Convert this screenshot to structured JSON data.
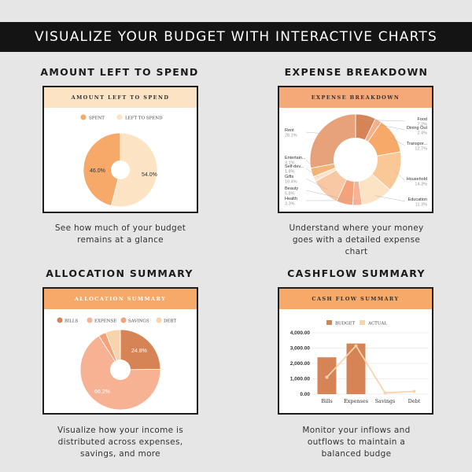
{
  "banner": {
    "title": "VISUALIZE YOUR BUDGET WITH INTERACTIVE CHARTS"
  },
  "colors": {
    "banner_bg": "#141414",
    "peach_light": "#fce3c4",
    "orange": "#f6a968",
    "salmon": "#f7b293",
    "dark_brown": "#d68456",
    "light_beige": "#f9d4ab"
  },
  "panels": {
    "amount_left": {
      "section_title": "AMOUNT LEFT TO SPEND",
      "card_title": "AMOUNT LEFT TO SPEND",
      "caption": [
        "See how much of your budget",
        "remains at a glance"
      ]
    },
    "expense_breakdown": {
      "section_title": "EXPENSE BREAKDOWN",
      "card_title": "EXPENSE BREAKDOWN",
      "caption": [
        "Understand where your money",
        "goes with a detailed expense",
        "chart"
      ]
    },
    "allocation_summary": {
      "section_title": "ALLOCATION SUMMARY",
      "card_title": "ALLOCATION SUMMARY",
      "caption": [
        "Visualize how your income is",
        "distributed across expenses,",
        "savings, and more"
      ]
    },
    "cashflow_summary": {
      "section_title": "CASHFLOW SUMMARY",
      "card_title": "CASH FLOW SUMMARY",
      "caption": [
        "Monitor your inflows and",
        "outflows to maintain a",
        "balanced budge"
      ]
    }
  },
  "chart_data": [
    {
      "type": "pie",
      "title": "AMOUNT LEFT TO SPEND",
      "legend": "top",
      "series": [
        {
          "name": "SPENT",
          "value": 46.0,
          "label": "46.0%",
          "color": "#f6a968"
        },
        {
          "name": "LEFT TO SPEND",
          "value": 54.0,
          "label": "54.0%",
          "color": "#fce3c4"
        }
      ]
    },
    {
      "type": "pie",
      "title": "EXPENSE BREAKDOWN",
      "legend": "none",
      "series": [
        {
          "name": "Food",
          "value": 7.2,
          "label": "7.2%",
          "color": "#d68456"
        },
        {
          "name": "Dining Out",
          "value": 2.4,
          "label": "2.4%",
          "color": "#f6b08c"
        },
        {
          "name": "Transpor...",
          "value": 12.7,
          "label": "12.7%",
          "color": "#f6a968"
        },
        {
          "name": "Household",
          "value": 14.3,
          "label": "14.3%",
          "color": "#f9c896"
        },
        {
          "name": "Education",
          "value": 11.3,
          "label": "11.3%",
          "color": "#fce3c4"
        },
        {
          "name": "Health",
          "value": 3.3,
          "label": "3.3%",
          "color": "#f7b293"
        },
        {
          "name": "Beauty",
          "value": 5.8,
          "label": "5.8%",
          "color": "#f4a27a"
        },
        {
          "name": "Gifts",
          "value": 10.4,
          "label": "10.4%",
          "color": "#f8c7a3"
        },
        {
          "name": "Self-dev...",
          "value": 1.8,
          "label": "1.8%",
          "color": "#fbe2c8"
        },
        {
          "name": "Entertain...",
          "value": 3.1,
          "label": "3.1%",
          "color": "#f3b476"
        },
        {
          "name": "Rent",
          "value": 28.1,
          "label": "28.1%",
          "color": "#e8a27a"
        }
      ]
    },
    {
      "type": "pie",
      "title": "ALLOCATION SUMMARY",
      "legend": "top",
      "series": [
        {
          "name": "BILLS",
          "value": 24.8,
          "label": "24.8%",
          "color": "#d68456"
        },
        {
          "name": "EXPENSE",
          "value": 66.2,
          "label": "66.2%",
          "color": "#f7b293"
        },
        {
          "name": "SAVINGS",
          "value": 3.0,
          "label": "",
          "color": "#f4a27a"
        },
        {
          "name": "DEBT",
          "value": 6.0,
          "label": "",
          "color": "#f9d4ab"
        }
      ]
    },
    {
      "type": "bar",
      "title": "CASH FLOW SUMMARY",
      "legend": "top",
      "categories": [
        "Bills",
        "Expenses",
        "Savings",
        "Debt"
      ],
      "ylim": [
        0,
        4000
      ],
      "yticks": [
        "0.00",
        "1,000.00",
        "2,000.00",
        "3,000.00",
        "4,000.00"
      ],
      "grid": true,
      "series": [
        {
          "name": "BUDGET",
          "kind": "bar",
          "color": "#d68456",
          "values": [
            2400,
            3300,
            0,
            0
          ]
        },
        {
          "name": "ACTUAL",
          "kind": "line",
          "color": "#f9d4ab",
          "values": [
            1100,
            3150,
            80,
            180
          ]
        }
      ]
    }
  ]
}
